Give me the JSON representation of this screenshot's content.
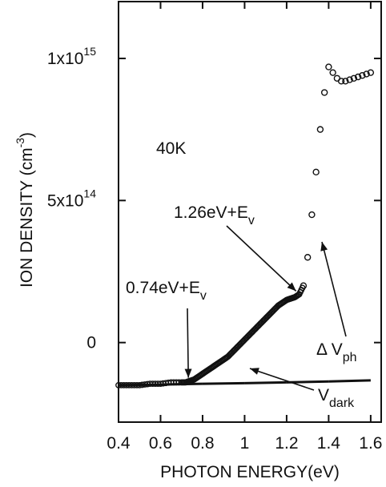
{
  "chart_data": {
    "type": "scatter",
    "xlabel": "PHOTON ENERGY(eV)",
    "ylabel_main": "ION DENSITY  (cm",
    "ylabel_sup": "-3",
    "ylabel_close": ")",
    "xlim": [
      0.4,
      1.65
    ],
    "ylim": [
      -0.28,
      1.2
    ],
    "y_unit": "1e15 cm^-3",
    "x_ticks": [
      0.4,
      0.6,
      0.8,
      1.0,
      1.2,
      1.4,
      1.6
    ],
    "x_tick_labels": [
      "0.4",
      "0.6",
      "0.8",
      "1",
      "1.2",
      "1.4",
      "1.6"
    ],
    "y_ticks": [
      0,
      0.5,
      1.0
    ],
    "y_tick_labels": [
      {
        "base": "0",
        "exp": ""
      },
      {
        "base": "5x10",
        "exp": "14"
      },
      {
        "base": "1x10",
        "exp": "15"
      }
    ],
    "grid": false,
    "temperature_label": "40K",
    "series": [
      {
        "id": "dv_ph",
        "label_main": "Δ V",
        "label_sub": "ph",
        "x": [
          0.4,
          0.45,
          0.5,
          0.55,
          0.6,
          0.65,
          0.7,
          0.72,
          0.74,
          0.76,
          0.78,
          0.8,
          0.82,
          0.84,
          0.86,
          0.88,
          0.9,
          0.92,
          0.94,
          0.96,
          0.98,
          1.0,
          1.02,
          1.04,
          1.06,
          1.08,
          1.1,
          1.12,
          1.14,
          1.16,
          1.18,
          1.2,
          1.22,
          1.24,
          1.26,
          1.28,
          1.3,
          1.32,
          1.34,
          1.36,
          1.38,
          1.4,
          1.42,
          1.44,
          1.46,
          1.48,
          1.5,
          1.52,
          1.54,
          1.56,
          1.58,
          1.6
        ],
        "y": [
          -0.15,
          -0.15,
          -0.15,
          -0.145,
          -0.145,
          -0.14,
          -0.14,
          -0.14,
          -0.135,
          -0.13,
          -0.12,
          -0.11,
          -0.1,
          -0.09,
          -0.08,
          -0.07,
          -0.06,
          -0.05,
          -0.035,
          -0.02,
          -0.005,
          0.01,
          0.025,
          0.04,
          0.055,
          0.07,
          0.085,
          0.1,
          0.115,
          0.13,
          0.14,
          0.15,
          0.155,
          0.16,
          0.17,
          0.2,
          0.3,
          0.45,
          0.6,
          0.75,
          0.88,
          0.97,
          0.95,
          0.93,
          0.92,
          0.92,
          0.925,
          0.93,
          0.935,
          0.94,
          0.945,
          0.95
        ]
      },
      {
        "id": "v_dark",
        "label_main": "V",
        "label_sub": "dark",
        "x": [
          0.4,
          0.6,
          0.8,
          1.0,
          1.2,
          1.4,
          1.6
        ],
        "y": [
          -0.15,
          -0.148,
          -0.145,
          -0.143,
          -0.14,
          -0.137,
          -0.133
        ]
      }
    ],
    "annotations": [
      {
        "id": "ann_074",
        "text_main": "0.74eV+E",
        "text_sub": "v",
        "target": [
          0.74,
          -0.135
        ]
      },
      {
        "id": "ann_126",
        "text_main": "1.26eV+E",
        "text_sub": "v",
        "target": [
          1.26,
          0.17
        ]
      }
    ]
  }
}
